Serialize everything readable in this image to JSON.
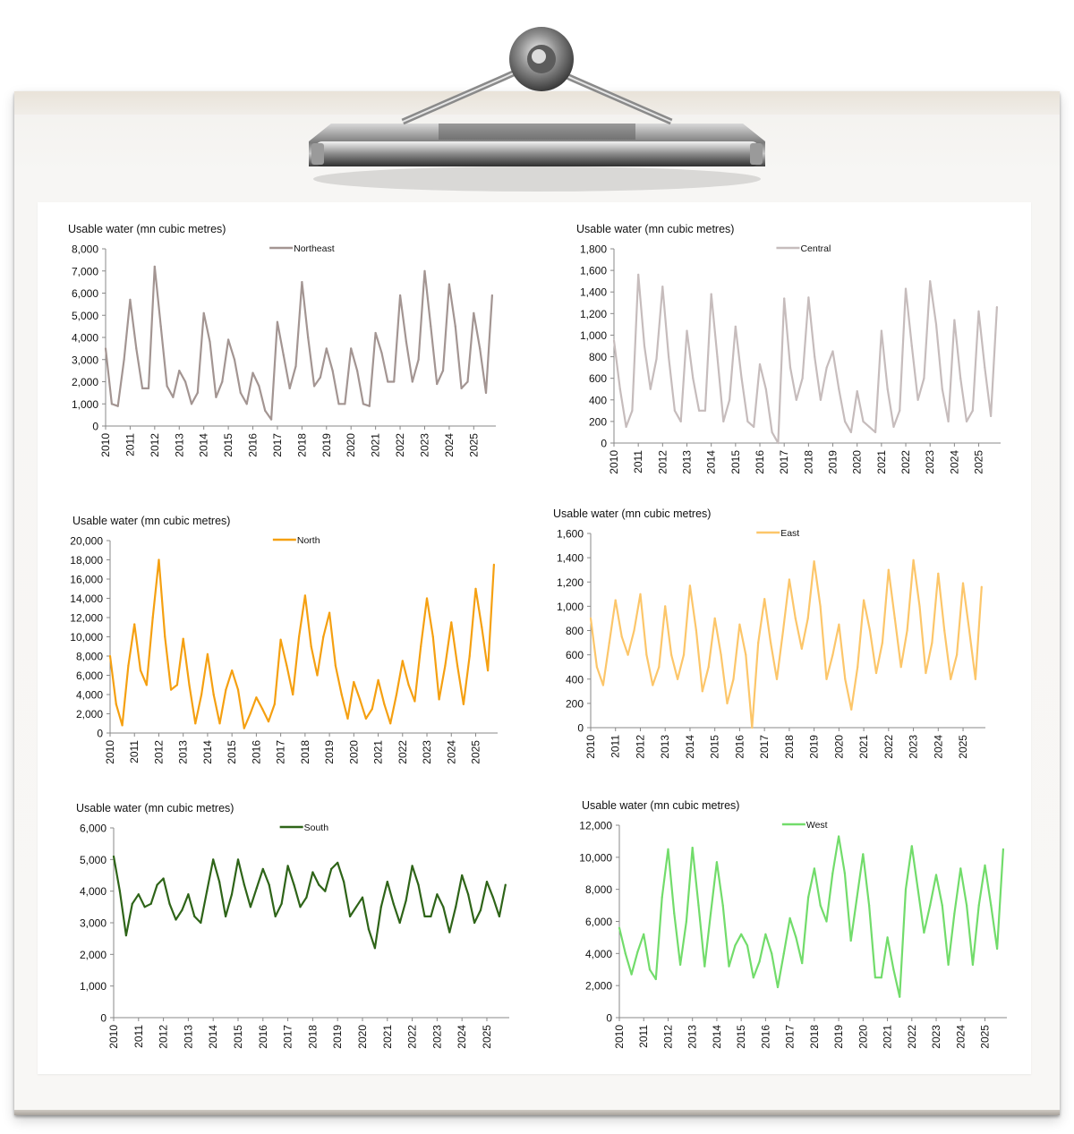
{
  "chart_data": [
    {
      "type": "line",
      "series": [
        {
          "name": "Northeast",
          "color": "#a39592"
        }
      ],
      "ylabel": "Usable water (mn cubic metres)",
      "ylim": [
        0,
        8000
      ],
      "yticks": [
        "0",
        "1,000",
        "2,000",
        "3,000",
        "4,000",
        "5,000",
        "6,000",
        "7,000",
        "8,000"
      ],
      "xticks": [
        "2010",
        "2011",
        "2012",
        "2013",
        "2014",
        "2015",
        "2016",
        "2017",
        "2018",
        "2019",
        "2020",
        "2021",
        "2022",
        "2023",
        "2024",
        "2025"
      ],
      "xrange": [
        2010,
        2025.9
      ],
      "legend": "top-center",
      "grid": false,
      "x": [
        2010.0,
        2010.25,
        2010.5,
        2010.75,
        2011.0,
        2011.25,
        2011.5,
        2011.75,
        2012.0,
        2012.25,
        2012.5,
        2012.75,
        2013.0,
        2013.25,
        2013.5,
        2013.75,
        2014.0,
        2014.25,
        2014.5,
        2014.75,
        2015.0,
        2015.25,
        2015.5,
        2015.75,
        2016.0,
        2016.25,
        2016.5,
        2016.75,
        2017.0,
        2017.25,
        2017.5,
        2017.75,
        2018.0,
        2018.25,
        2018.5,
        2018.75,
        2019.0,
        2019.25,
        2019.5,
        2019.75,
        2020.0,
        2020.25,
        2020.5,
        2020.75,
        2021.0,
        2021.25,
        2021.5,
        2021.75,
        2022.0,
        2022.25,
        2022.5,
        2022.75,
        2023.0,
        2023.25,
        2023.5,
        2023.75,
        2024.0,
        2024.25,
        2024.5,
        2024.75,
        2025.0,
        2025.25,
        2025.5,
        2025.75
      ],
      "values": [
        3500,
        1000,
        900,
        3000,
        5700,
        3500,
        1700,
        1700,
        7200,
        4500,
        1800,
        1300,
        2500,
        2000,
        1000,
        1500,
        5100,
        3800,
        1300,
        2000,
        3900,
        3000,
        1500,
        1000,
        2400,
        1800,
        700,
        300,
        4700,
        3200,
        1700,
        2700,
        6500,
        4000,
        1800,
        2200,
        3500,
        2500,
        1000,
        1000,
        3500,
        2500,
        1000,
        900,
        4200,
        3300,
        2000,
        2000,
        5900,
        3800,
        2000,
        3000,
        7000,
        4500,
        1900,
        2500,
        6400,
        4500,
        1700,
        2000,
        5100,
        3500,
        1500,
        5900
      ]
    },
    {
      "type": "line",
      "series": [
        {
          "name": "Central",
          "color": "#c6bcbc"
        }
      ],
      "ylabel": "Usable water (mn cubic metres)",
      "ylim": [
        0,
        1800
      ],
      "yticks": [
        "0",
        "200",
        "400",
        "600",
        "800",
        "1,000",
        "1,200",
        "1,400",
        "1,600",
        "1,800"
      ],
      "xticks": [
        "2010",
        "2011",
        "2012",
        "2013",
        "2014",
        "2015",
        "2016",
        "2017",
        "2018",
        "2019",
        "2020",
        "2021",
        "2022",
        "2023",
        "2024",
        "2025"
      ],
      "xrange": [
        2010,
        2025.9
      ],
      "legend": "top-center",
      "grid": false,
      "x": [
        2010.0,
        2010.25,
        2010.5,
        2010.75,
        2011.0,
        2011.25,
        2011.5,
        2011.75,
        2012.0,
        2012.25,
        2012.5,
        2012.75,
        2013.0,
        2013.25,
        2013.5,
        2013.75,
        2014.0,
        2014.25,
        2014.5,
        2014.75,
        2015.0,
        2015.25,
        2015.5,
        2015.75,
        2016.0,
        2016.25,
        2016.5,
        2016.75,
        2017.0,
        2017.25,
        2017.5,
        2017.75,
        2018.0,
        2018.25,
        2018.5,
        2018.75,
        2019.0,
        2019.25,
        2019.5,
        2019.75,
        2020.0,
        2020.25,
        2020.5,
        2020.75,
        2021.0,
        2021.25,
        2021.5,
        2021.75,
        2022.0,
        2022.25,
        2022.5,
        2022.75,
        2023.0,
        2023.25,
        2023.5,
        2023.75,
        2024.0,
        2024.25,
        2024.5,
        2024.75,
        2025.0,
        2025.25,
        2025.5,
        2025.75
      ],
      "values": [
        950,
        500,
        150,
        300,
        1560,
        900,
        500,
        780,
        1450,
        800,
        300,
        200,
        1040,
        600,
        300,
        300,
        1380,
        800,
        200,
        400,
        1080,
        600,
        200,
        150,
        730,
        500,
        100,
        0,
        1340,
        700,
        400,
        600,
        1350,
        800,
        400,
        700,
        850,
        500,
        200,
        100,
        480,
        200,
        150,
        100,
        1040,
        500,
        150,
        300,
        1430,
        900,
        400,
        600,
        1500,
        1100,
        500,
        200,
        1140,
        600,
        200,
        300,
        1220,
        700,
        250,
        1260
      ]
    },
    {
      "type": "line",
      "series": [
        {
          "name": "North",
          "color": "#f5a011"
        }
      ],
      "ylabel": "Usable water (mn cubic metres)",
      "ylim": [
        0,
        20000
      ],
      "yticks": [
        "0",
        "2,000",
        "4,000",
        "6,000",
        "8,000",
        "10,000",
        "12,000",
        "14,000",
        "16,000",
        "18,000",
        "20,000"
      ],
      "xticks": [
        "2010",
        "2011",
        "2012",
        "2013",
        "2014",
        "2015",
        "2016",
        "2017",
        "2018",
        "2019",
        "2020",
        "2021",
        "2022",
        "2023",
        "2024",
        "2025"
      ],
      "xrange": [
        2010,
        2025.9
      ],
      "legend": "top-center",
      "grid": false,
      "x": [
        2010.0,
        2010.25,
        2010.5,
        2010.75,
        2011.0,
        2011.25,
        2011.5,
        2011.75,
        2012.0,
        2012.25,
        2012.5,
        2012.75,
        2013.0,
        2013.25,
        2013.5,
        2013.75,
        2014.0,
        2014.25,
        2014.5,
        2014.75,
        2015.0,
        2015.25,
        2015.5,
        2015.75,
        2016.0,
        2016.25,
        2016.5,
        2016.75,
        2017.0,
        2017.25,
        2017.5,
        2017.75,
        2018.0,
        2018.25,
        2018.5,
        2018.75,
        2019.0,
        2019.25,
        2019.5,
        2019.75,
        2020.0,
        2020.25,
        2020.5,
        2020.75,
        2021.0,
        2021.25,
        2021.5,
        2021.75,
        2022.0,
        2022.25,
        2022.5,
        2022.75,
        2023.0,
        2023.25,
        2023.5,
        2023.75,
        2024.0,
        2024.25,
        2024.5,
        2024.75,
        2025.0,
        2025.25,
        2025.5,
        2025.75
      ],
      "values": [
        8000,
        3000,
        800,
        7000,
        11300,
        6500,
        5000,
        12000,
        18000,
        10000,
        4500,
        5000,
        9800,
        5000,
        1000,
        4000,
        8200,
        4000,
        1000,
        4500,
        6500,
        4500,
        500,
        2000,
        3700,
        2500,
        1200,
        3000,
        9700,
        7000,
        4000,
        10000,
        14300,
        9000,
        6000,
        10000,
        12500,
        7000,
        4000,
        1500,
        5300,
        3500,
        1500,
        2500,
        5500,
        3000,
        1000,
        4000,
        7500,
        5000,
        3300,
        9000,
        14000,
        10000,
        3500,
        7000,
        11500,
        7000,
        3000,
        8000,
        15000,
        11000,
        6500,
        17500
      ]
    },
    {
      "type": "line",
      "series": [
        {
          "name": "East",
          "color": "#fcc66a"
        }
      ],
      "ylabel": "Usable water (mn cubic metres)",
      "ylim": [
        0,
        1600
      ],
      "yticks": [
        "0",
        "200",
        "400",
        "600",
        "800",
        "1,000",
        "1,200",
        "1,400",
        "1,600"
      ],
      "xticks": [
        "2010",
        "2011",
        "2012",
        "2013",
        "2014",
        "2015",
        "2016",
        "2017",
        "2018",
        "2019",
        "2020",
        "2021",
        "2022",
        "2023",
        "2024",
        "2025"
      ],
      "xrange": [
        2010,
        2025.9
      ],
      "legend": "top-center",
      "grid": false,
      "x": [
        2010.0,
        2010.25,
        2010.5,
        2010.75,
        2011.0,
        2011.25,
        2011.5,
        2011.75,
        2012.0,
        2012.25,
        2012.5,
        2012.75,
        2013.0,
        2013.25,
        2013.5,
        2013.75,
        2014.0,
        2014.25,
        2014.5,
        2014.75,
        2015.0,
        2015.25,
        2015.5,
        2015.75,
        2016.0,
        2016.25,
        2016.5,
        2016.75,
        2017.0,
        2017.25,
        2017.5,
        2017.75,
        2018.0,
        2018.25,
        2018.5,
        2018.75,
        2019.0,
        2019.25,
        2019.5,
        2019.75,
        2020.0,
        2020.25,
        2020.5,
        2020.75,
        2021.0,
        2021.25,
        2021.5,
        2021.75,
        2022.0,
        2022.25,
        2022.5,
        2022.75,
        2023.0,
        2023.25,
        2023.5,
        2023.75,
        2024.0,
        2024.25,
        2024.5,
        2024.75,
        2025.0,
        2025.25,
        2025.5,
        2025.75
      ],
      "values": [
        900,
        500,
        350,
        700,
        1050,
        750,
        600,
        800,
        1100,
        600,
        350,
        500,
        1000,
        600,
        400,
        600,
        1170,
        800,
        300,
        500,
        900,
        600,
        200,
        400,
        850,
        600,
        0,
        700,
        1060,
        700,
        400,
        800,
        1220,
        900,
        650,
        900,
        1370,
        1000,
        400,
        600,
        850,
        400,
        150,
        500,
        1050,
        800,
        450,
        700,
        1300,
        900,
        500,
        800,
        1380,
        1000,
        450,
        700,
        1270,
        800,
        400,
        600,
        1190,
        800,
        400,
        1160
      ]
    },
    {
      "type": "line",
      "series": [
        {
          "name": "South",
          "color": "#2e6418"
        }
      ],
      "ylabel": "Usable water (mn cubic metres)",
      "ylim": [
        0,
        6000
      ],
      "yticks": [
        "0",
        "1,000",
        "2,000",
        "3,000",
        "4,000",
        "5,000",
        "6,000"
      ],
      "xticks": [
        "2010",
        "2011",
        "2012",
        "2013",
        "2014",
        "2015",
        "2016",
        "2017",
        "2018",
        "2019",
        "2020",
        "2021",
        "2022",
        "2023",
        "2024",
        "2025"
      ],
      "xrange": [
        2010,
        2025.9
      ],
      "legend": "top-center",
      "grid": false,
      "x": [
        2010.0,
        2010.25,
        2010.5,
        2010.75,
        2011.0,
        2011.25,
        2011.5,
        2011.75,
        2012.0,
        2012.25,
        2012.5,
        2012.75,
        2013.0,
        2013.25,
        2013.5,
        2013.75,
        2014.0,
        2014.25,
        2014.5,
        2014.75,
        2015.0,
        2015.25,
        2015.5,
        2015.75,
        2016.0,
        2016.25,
        2016.5,
        2016.75,
        2017.0,
        2017.25,
        2017.5,
        2017.75,
        2018.0,
        2018.25,
        2018.5,
        2018.75,
        2019.0,
        2019.25,
        2019.5,
        2019.75,
        2020.0,
        2020.25,
        2020.5,
        2020.75,
        2021.0,
        2021.25,
        2021.5,
        2021.75,
        2022.0,
        2022.25,
        2022.5,
        2022.75,
        2023.0,
        2023.25,
        2023.5,
        2023.75,
        2024.0,
        2024.25,
        2024.5,
        2024.75,
        2025.0,
        2025.25,
        2025.5,
        2025.75
      ],
      "values": [
        5100,
        4000,
        2600,
        3600,
        3900,
        3500,
        3600,
        4200,
        4400,
        3600,
        3100,
        3400,
        3900,
        3200,
        3000,
        4000,
        5000,
        4300,
        3200,
        3900,
        5000,
        4200,
        3500,
        4100,
        4700,
        4200,
        3200,
        3600,
        4800,
        4200,
        3500,
        3800,
        4600,
        4200,
        4000,
        4700,
        4900,
        4300,
        3200,
        3500,
        3800,
        2800,
        2200,
        3500,
        4300,
        3600,
        3000,
        3700,
        4800,
        4200,
        3200,
        3200,
        3900,
        3500,
        2700,
        3500,
        4500,
        3900,
        3000,
        3400,
        4300,
        3800,
        3200,
        4200
      ]
    },
    {
      "type": "line",
      "series": [
        {
          "name": "West",
          "color": "#72dc6b"
        }
      ],
      "ylabel": "Usable water (mn cubic metres)",
      "ylim": [
        0,
        12000
      ],
      "yticks": [
        "0",
        "2,000",
        "4,000",
        "6,000",
        "8,000",
        "10,000",
        "12,000"
      ],
      "xticks": [
        "2010",
        "2011",
        "2012",
        "2013",
        "2014",
        "2015",
        "2016",
        "2017",
        "2018",
        "2019",
        "2020",
        "2021",
        "2022",
        "2023",
        "2024",
        "2025"
      ],
      "xrange": [
        2010,
        2025.9
      ],
      "legend": "top-center",
      "grid": false,
      "x": [
        2010.0,
        2010.25,
        2010.5,
        2010.75,
        2011.0,
        2011.25,
        2011.5,
        2011.75,
        2012.0,
        2012.25,
        2012.5,
        2012.75,
        2013.0,
        2013.25,
        2013.5,
        2013.75,
        2014.0,
        2014.25,
        2014.5,
        2014.75,
        2015.0,
        2015.25,
        2015.5,
        2015.75,
        2016.0,
        2016.25,
        2016.5,
        2016.75,
        2017.0,
        2017.25,
        2017.5,
        2017.75,
        2018.0,
        2018.25,
        2018.5,
        2018.75,
        2019.0,
        2019.25,
        2019.5,
        2019.75,
        2020.0,
        2020.25,
        2020.5,
        2020.75,
        2021.0,
        2021.25,
        2021.5,
        2021.75,
        2022.0,
        2022.25,
        2022.5,
        2022.75,
        2023.0,
        2023.25,
        2023.5,
        2023.75,
        2024.0,
        2024.25,
        2024.5,
        2024.75,
        2025.0,
        2025.25,
        2025.5,
        2025.75
      ],
      "values": [
        5600,
        4000,
        2700,
        4100,
        5200,
        3000,
        2400,
        7500,
        10500,
        6500,
        3300,
        6000,
        10600,
        7000,
        3200,
        6500,
        9700,
        7000,
        3200,
        4500,
        5200,
        4500,
        2500,
        3500,
        5200,
        4000,
        1900,
        4000,
        6200,
        5000,
        3400,
        7500,
        9300,
        7000,
        6000,
        9000,
        11300,
        9000,
        4800,
        7500,
        10200,
        7000,
        2500,
        2500,
        5000,
        3000,
        1300,
        8000,
        10700,
        8000,
        5300,
        7000,
        8900,
        7000,
        3300,
        6500,
        9300,
        7000,
        3300,
        7000,
        9500,
        7000,
        4300,
        10500
      ]
    }
  ]
}
